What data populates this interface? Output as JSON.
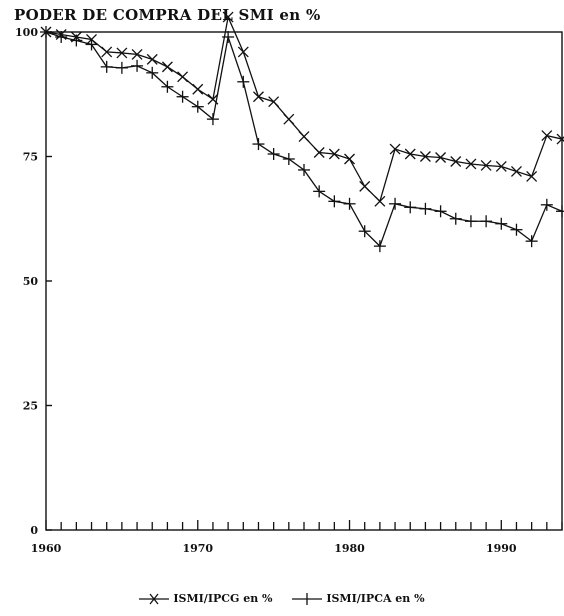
{
  "chart_data": {
    "type": "line",
    "title": "PODER DE COMPRA DEL SMI en %",
    "xlabel": "",
    "ylabel": "",
    "xlim": [
      1960,
      1994
    ],
    "ylim": [
      0,
      100
    ],
    "x_ticks": [
      1960,
      1970,
      1980,
      1990
    ],
    "y_ticks": [
      0,
      25,
      50,
      75,
      100
    ],
    "grid": false,
    "legend_position": "bottom",
    "x": [
      1960,
      1961,
      1962,
      1963,
      1964,
      1965,
      1966,
      1967,
      1968,
      1969,
      1970,
      1971,
      1972,
      1973,
      1974,
      1975,
      1976,
      1977,
      1978,
      1979,
      1980,
      1981,
      1982,
      1983,
      1984,
      1985,
      1986,
      1987,
      1988,
      1989,
      1990,
      1991,
      1992,
      1993,
      1994
    ],
    "series": [
      {
        "name": "ISMI/IPCG en %",
        "marker": "x",
        "values": [
          100,
          99.5,
          99,
          98.5,
          96,
          95.8,
          95.5,
          94.5,
          93,
          91,
          88.5,
          86.5,
          103,
          96,
          87,
          86,
          82.5,
          79,
          75.8,
          75.5,
          74.5,
          69,
          66,
          76.5,
          75.5,
          75,
          74.8,
          74,
          73.5,
          73.2,
          73,
          72,
          71,
          79.2,
          78.5
        ]
      },
      {
        "name": "ISMI/IPCA en %",
        "marker": "+",
        "values": [
          100,
          99,
          98.3,
          97.5,
          93,
          92.8,
          93.2,
          91.8,
          89,
          87,
          85,
          82.5,
          99,
          90,
          77.5,
          75.5,
          74.5,
          72.3,
          68,
          66,
          65.5,
          60,
          57,
          65.5,
          64.8,
          64.5,
          64,
          62.5,
          62,
          62,
          61.5,
          60.3,
          58,
          65.3,
          64
        ]
      }
    ]
  }
}
